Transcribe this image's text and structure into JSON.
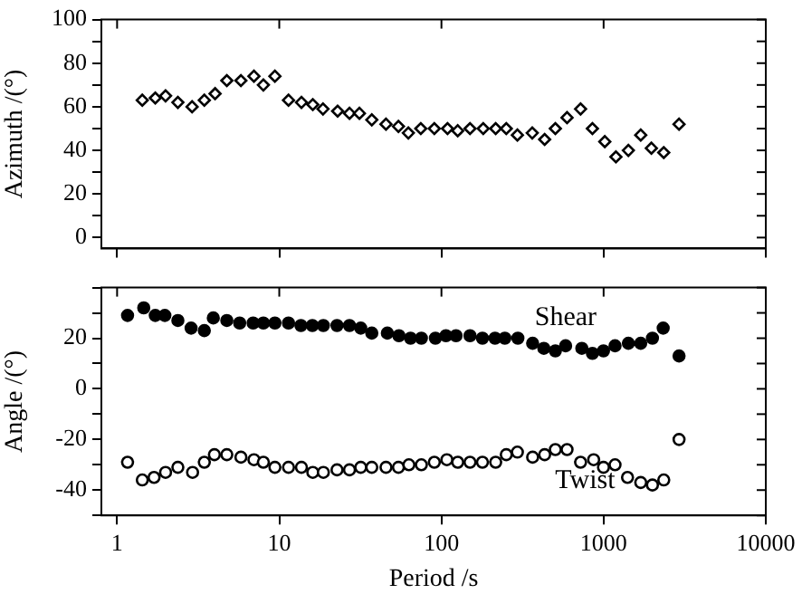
{
  "chart_data": [
    {
      "type": "scatter",
      "ylabel": "Azimuth /(°)",
      "xlim": [
        0.8,
        10000
      ],
      "xticks": [
        1,
        10,
        100,
        1000,
        10000
      ],
      "log": "x",
      "tick_labels": "y",
      "ylim": [
        -5,
        100
      ],
      "yticks": [
        0,
        {
          "value": 10,
          "label": null
        },
        20,
        {
          "value": 30,
          "label": null
        },
        40,
        {
          "value": 50,
          "label": null
        },
        60,
        {
          "value": 70,
          "label": null
        },
        80,
        {
          "value": 90,
          "label": null
        },
        100
      ],
      "grid": false,
      "legend": false,
      "marker": "diamond",
      "series": [
        {
          "color": "#000000",
          "x": [
            1.43,
            1.72,
            1.99,
            2.37,
            2.9,
            3.45,
            4.02,
            4.75,
            5.8,
            6.98,
            7.98,
            9.4,
            11.4,
            13.7,
            16.1,
            18.6,
            22.9,
            27.1,
            31.2,
            37.2,
            45.5,
            54.3,
            62.5,
            74.6,
            90.4,
            109,
            126,
            150,
            181,
            216,
            251,
            294,
            363,
            433,
            504,
            595,
            721,
            853,
            1017,
            1191,
            1421,
            1694,
            1970,
            2349,
            2918
          ],
          "values": [
            63,
            64,
            65,
            62,
            60,
            63,
            66,
            72,
            72,
            74,
            70,
            74,
            63,
            62,
            61,
            59,
            58,
            57,
            57,
            54,
            52,
            51,
            48,
            50,
            50,
            50,
            49,
            50,
            50,
            50,
            50,
            47,
            48,
            45,
            50,
            55,
            59,
            50,
            44,
            37,
            40,
            47,
            41,
            39,
            52
          ]
        }
      ]
    },
    {
      "type": "scatter",
      "ylabel": "Angle /(°)",
      "xlabel": "Period /s",
      "xlim": [
        0.8,
        10000
      ],
      "xticks": [
        1,
        10,
        100,
        1000,
        10000
      ],
      "log": "x",
      "ylim": [
        -50,
        40
      ],
      "yticks": [
        {
          "value": -50,
          "label": null
        },
        -40,
        {
          "value": -30,
          "label": null
        },
        -20,
        {
          "value": -10,
          "label": null
        },
        0,
        {
          "value": 10,
          "label": null
        },
        20,
        {
          "value": 30,
          "label": null
        },
        {
          "value": 40,
          "label": null
        }
      ],
      "grid": false,
      "legend": "top right",
      "marker": "circle",
      "series": [
        {
          "name": "Shear",
          "color": "#000000",
          "x": [
            1.16,
            1.46,
            1.72,
            1.97,
            2.37,
            2.86,
            3.45,
            3.92,
            4.75,
            5.7,
            6.9,
            7.98,
            9.4,
            11.4,
            13.6,
            16,
            18.7,
            22.7,
            27.1,
            31.8,
            37.2,
            46.4,
            54.7,
            64.5,
            75.2,
            91.8,
            106.6,
            123,
            150,
            179,
            214,
            246,
            296,
            365,
            428,
            504,
            583,
            734,
            853,
            998,
            1176,
            1421,
            1694,
            2000,
            2330,
            2918
          ],
          "values": [
            29,
            32,
            29,
            29,
            27,
            24,
            23,
            28,
            27,
            26,
            26,
            26,
            26,
            26,
            25,
            25,
            25,
            25,
            25,
            24,
            22,
            22,
            21,
            20,
            20,
            20,
            21,
            21,
            21,
            20,
            20,
            20,
            20,
            18,
            16,
            15,
            17,
            16,
            14,
            15,
            17,
            18,
            18,
            20,
            24,
            13
          ]
        },
        {
          "name": "Twist",
          "color": "#000000",
          "x": [
            1.16,
            1.43,
            1.69,
            1.99,
            2.37,
            2.92,
            3.45,
            3.98,
            4.75,
            5.8,
            6.98,
            7.98,
            9.4,
            11.4,
            13.7,
            16.1,
            18.7,
            22.7,
            27.1,
            31.8,
            37.2,
            45.5,
            54.3,
            63,
            75.2,
            90.4,
            108,
            126,
            150,
            179,
            216,
            251,
            294,
            365,
            433,
            504,
            595,
            721,
            868,
            998,
            1176,
            1404,
            1694,
            2000,
            2349,
            2918
          ],
          "values": [
            -29,
            -36,
            -35,
            -33,
            -31,
            -33,
            -29,
            -26,
            -26,
            -27,
            -28,
            -29,
            -31,
            -31,
            -31,
            -33,
            -33,
            -32,
            -32,
            -31,
            -31,
            -31,
            -31,
            -30,
            -30,
            -29,
            -28,
            -29,
            -29,
            -29,
            -29,
            -26,
            -25,
            -27,
            -26,
            -24,
            -24,
            -29,
            -28,
            -31,
            -30,
            -35,
            -37,
            -38,
            -36,
            -20
          ]
        }
      ]
    }
  ]
}
